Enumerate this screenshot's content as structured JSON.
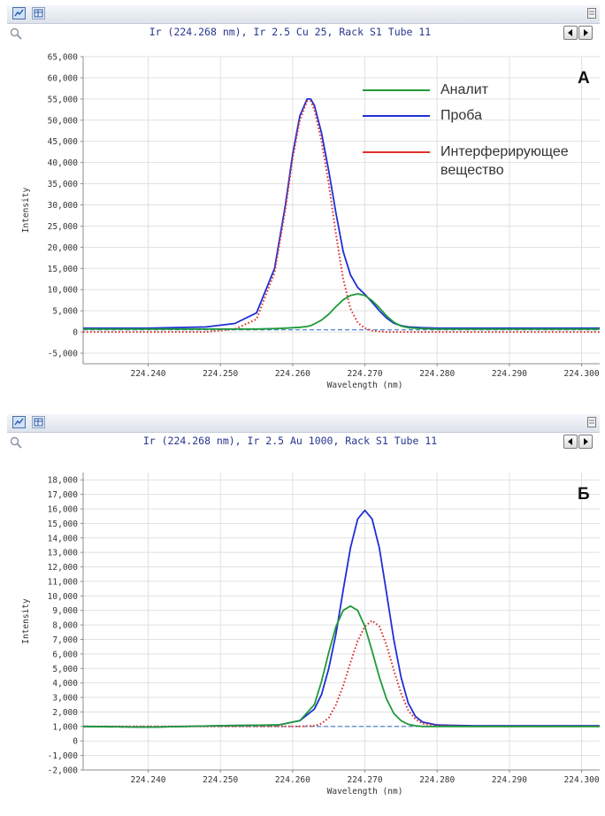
{
  "legend": {
    "items": [
      {
        "label": "Аналит",
        "color": "#1f9a3a"
      },
      {
        "label": "Проба",
        "color": "#1f2fd6"
      },
      {
        "label": "Интерферирующее\nвещество",
        "color": "#e0302a"
      }
    ]
  },
  "panels": [
    {
      "letter": "А",
      "title": "Ir (224.268 nm), Ir 2.5 Cu 25, Rack S1 Tube 11",
      "icons": [
        "chart-view-icon",
        "table-view-icon",
        "panel-menu-icon",
        "zoom-icon",
        "previous-arrow-icon",
        "next-arrow-icon"
      ]
    },
    {
      "letter": "Б",
      "title": "Ir (224.268 nm), Ir 2.5 Au 1000, Rack S1 Tube 11",
      "icons": [
        "chart-view-icon",
        "table-view-icon",
        "panel-menu-icon",
        "zoom-icon",
        "previous-arrow-icon",
        "next-arrow-icon"
      ]
    }
  ],
  "chart_data": [
    {
      "type": "line",
      "title": "Ir (224.268 nm), Ir 2.5 Cu 25, Rack S1 Tube 11",
      "xlabel": "Wavelength (nm)",
      "ylabel": "Intensity",
      "xlim": [
        224.231,
        224.3025
      ],
      "ylim": [
        -7500,
        65000
      ],
      "xticks": [
        224.24,
        224.25,
        224.26,
        224.27,
        224.28,
        224.29,
        224.3
      ],
      "xtick_labels": [
        "224.240",
        "224.250",
        "224.260",
        "224.270",
        "224.280",
        "224.290",
        "224.300"
      ],
      "yticks": [
        -5000,
        0,
        5000,
        10000,
        15000,
        20000,
        25000,
        30000,
        35000,
        40000,
        45000,
        50000,
        55000,
        60000,
        65000
      ],
      "ytick_labels": [
        "-5,000",
        "0",
        "5,000",
        "10,000",
        "15,000",
        "20,000",
        "25,000",
        "30,000",
        "35,000",
        "40,000",
        "45,000",
        "50,000",
        "55,000",
        "60,000",
        "65,000"
      ],
      "grid": true,
      "legend_position": "top-right",
      "x": [
        224.231,
        224.24,
        224.248,
        224.252,
        224.255,
        224.2575,
        224.259,
        224.26,
        224.261,
        224.262,
        224.2625,
        224.263,
        224.264,
        224.265,
        224.266,
        224.267,
        224.268,
        224.269,
        224.27,
        224.271,
        224.272,
        224.273,
        224.274,
        224.275,
        224.276,
        224.278,
        224.28,
        224.29,
        224.3025
      ],
      "series": [
        {
          "name": "Проба",
          "color": "#1f2fd6",
          "style": "solid",
          "values": [
            900,
            900,
            1200,
            2000,
            4500,
            15000,
            30000,
            42000,
            51000,
            55000,
            55000,
            53500,
            47000,
            38000,
            28000,
            19000,
            13500,
            10500,
            8900,
            7000,
            5000,
            3300,
            2100,
            1500,
            1200,
            1000,
            900,
            900,
            900
          ]
        },
        {
          "name": "Аналит",
          "color": "#1f9a3a",
          "style": "solid",
          "values": [
            700,
            700,
            700,
            700,
            700,
            800,
            900,
            1000,
            1100,
            1300,
            1500,
            1900,
            2800,
            4200,
            6000,
            7600,
            8600,
            9000,
            8600,
            7400,
            5700,
            3800,
            2300,
            1400,
            1000,
            800,
            700,
            700,
            700
          ]
        },
        {
          "name": "Интерферирующее вещество",
          "color": "#e0302a",
          "style": "dotted",
          "values": [
            0,
            0,
            0,
            700,
            3000,
            14000,
            29000,
            41000,
            50000,
            54500,
            54500,
            52500,
            45000,
            35000,
            23000,
            12500,
            5500,
            2200,
            900,
            300,
            100,
            0,
            0,
            0,
            0,
            0,
            0,
            0,
            0
          ]
        },
        {
          "name": "",
          "color": "#3a7ac8",
          "style": "dashed",
          "values": [
            500,
            500,
            500,
            500,
            500,
            500,
            500,
            500,
            500,
            500,
            500,
            500,
            500,
            500,
            500,
            500,
            500,
            500,
            500,
            500,
            500,
            500,
            500,
            500,
            500,
            500,
            500,
            500,
            500
          ]
        }
      ]
    },
    {
      "type": "line",
      "title": "Ir (224.268 nm), Ir 2.5 Au 1000, Rack S1 Tube 11",
      "xlabel": "Wavelength (nm)",
      "ylabel": "Intensity",
      "xlim": [
        224.231,
        224.3025
      ],
      "ylim": [
        -2000,
        18500
      ],
      "xticks": [
        224.24,
        224.25,
        224.26,
        224.27,
        224.28,
        224.29,
        224.3
      ],
      "xtick_labels": [
        "224.240",
        "224.250",
        "224.260",
        "224.270",
        "224.280",
        "224.290",
        "224.300"
      ],
      "yticks": [
        -2000,
        -1000,
        0,
        1000,
        2000,
        3000,
        4000,
        5000,
        6000,
        7000,
        8000,
        9000,
        10000,
        11000,
        12000,
        13000,
        14000,
        15000,
        16000,
        17000,
        18000
      ],
      "ytick_labels": [
        "-2,000",
        "-1,000",
        "0",
        "1,000",
        "2,000",
        "3,000",
        "4,000",
        "5,000",
        "6,000",
        "7,000",
        "8,000",
        "9,000",
        "10,000",
        "11,000",
        "12,000",
        "13,000",
        "14,000",
        "15,000",
        "16,000",
        "17,000",
        "18,000"
      ],
      "grid": true,
      "x": [
        224.231,
        224.24,
        224.25,
        224.258,
        224.261,
        224.263,
        224.264,
        224.265,
        224.266,
        224.267,
        224.268,
        224.269,
        224.27,
        224.271,
        224.272,
        224.273,
        224.274,
        224.275,
        224.276,
        224.277,
        224.278,
        224.28,
        224.285,
        224.29,
        224.3025
      ],
      "series": [
        {
          "name": "Проба",
          "color": "#1f2fd6",
          "style": "solid",
          "values": [
            1000,
            950,
            1050,
            1100,
            1400,
            2200,
            3200,
            5000,
            7400,
            10400,
            13300,
            15300,
            15900,
            15300,
            13300,
            10200,
            7000,
            4400,
            2600,
            1700,
            1300,
            1100,
            1050,
            1050,
            1050
          ]
        },
        {
          "name": "Аналит",
          "color": "#1f9a3a",
          "style": "solid",
          "values": [
            1000,
            950,
            1050,
            1100,
            1400,
            2500,
            4100,
            6100,
            7900,
            9000,
            9300,
            9000,
            7900,
            6200,
            4400,
            2900,
            1900,
            1400,
            1150,
            1050,
            1000,
            1000,
            1000,
            1000,
            1000
          ]
        },
        {
          "name": "Интерферирующее вещество",
          "color": "#e0302a",
          "style": "dotted",
          "values": [
            1000,
            1000,
            1000,
            1000,
            1000,
            1050,
            1200,
            1600,
            2500,
            3800,
            5400,
            6900,
            7900,
            8300,
            7900,
            6600,
            4900,
            3300,
            2100,
            1500,
            1200,
            1050,
            1000,
            1000,
            1000
          ]
        },
        {
          "name": "",
          "color": "#3a7ac8",
          "style": "dashed",
          "values": [
            1000,
            1000,
            1000,
            1000,
            1000,
            1000,
            1000,
            1000,
            1000,
            1000,
            1000,
            1000,
            1000,
            1000,
            1000,
            1000,
            1000,
            1000,
            1000,
            1000,
            1000,
            1000,
            1000,
            1000,
            1000
          ]
        }
      ]
    }
  ]
}
